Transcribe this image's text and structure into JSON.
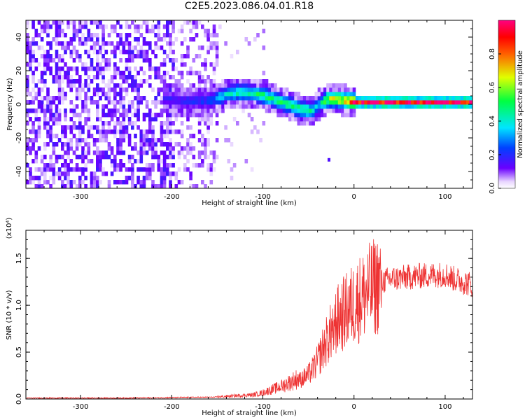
{
  "title": "C2E5.2023.086.04.01.R18",
  "colors": {
    "spectrogram_dark": "#6a00ff",
    "snr_line": "#ee3333",
    "axis": "#000000"
  },
  "chart_data": [
    {
      "type": "heatmap",
      "xlabel": "Height of straight line (km)",
      "ylabel": "Frequency (Hz)",
      "xlim": [
        -360,
        130
      ],
      "ylim": [
        -50,
        50
      ],
      "xticks": [
        -300,
        -200,
        -100,
        0,
        100
      ],
      "yticks": [
        -40,
        -20,
        0,
        20,
        40
      ],
      "grid": false,
      "colorbar": {
        "label": "Normalized spectral amplitude",
        "range": [
          0.0,
          1.0
        ],
        "ticks": [
          "0.0",
          "0.2",
          "0.4",
          "0.6",
          "0.8"
        ],
        "colormap": "rainbow"
      },
      "ridge": {
        "x": [
          -205,
          -190,
          -175,
          -160,
          -150,
          -140,
          -130,
          -120,
          -110,
          -100,
          -90,
          -80,
          -70,
          -60,
          -50,
          -45,
          -40,
          -30,
          -20,
          -10,
          0,
          20,
          40,
          60,
          80,
          100,
          120,
          130
        ],
        "y": [
          2,
          1,
          1,
          1,
          3,
          5,
          6,
          6,
          5,
          4,
          2,
          0,
          -2,
          -4,
          -5,
          -4,
          -1,
          2,
          2,
          1,
          0,
          0,
          0,
          0,
          0,
          0,
          0,
          0
        ],
        "amplitude": [
          0.2,
          0.2,
          0.25,
          0.25,
          0.4,
          0.45,
          0.5,
          0.5,
          0.5,
          0.55,
          0.55,
          0.55,
          0.55,
          0.55,
          0.5,
          0.45,
          0.4,
          0.7,
          0.75,
          0.8,
          1.0,
          1.0,
          1.0,
          1.0,
          1.0,
          1.0,
          1.0,
          1.0
        ]
      }
    },
    {
      "type": "line",
      "xlabel": "Height of straight line (km)",
      "ylabel": "SNR (10 * v/v)",
      "y_multiplier": "(x10⁴)",
      "xlim": [
        -360,
        130
      ],
      "ylim": [
        0,
        1.8
      ],
      "xticks": [
        -300,
        -200,
        -100,
        0,
        100
      ],
      "yticks": [
        "0.0",
        "0.5",
        "1.0",
        "1.5"
      ],
      "series": [
        {
          "x": [
            -360,
            -300,
            -250,
            -200,
            -150,
            -130,
            -110,
            -100,
            -90,
            -80,
            -70,
            -60,
            -50,
            -45,
            -40,
            -35,
            -30,
            -25,
            -20,
            -15,
            -10,
            -5,
            0,
            5,
            10,
            20,
            30,
            40,
            60,
            80,
            100,
            110,
            120,
            130
          ],
          "y": [
            0.01,
            0.01,
            0.01,
            0.015,
            0.02,
            0.03,
            0.04,
            0.06,
            0.09,
            0.12,
            0.16,
            0.2,
            0.26,
            0.32,
            0.4,
            0.52,
            0.62,
            0.72,
            0.82,
            0.88,
            0.92,
            0.97,
            1.02,
            1.06,
            1.1,
            1.18,
            1.25,
            1.28,
            1.3,
            1.32,
            1.33,
            1.28,
            1.25,
            1.22
          ]
        }
      ]
    }
  ]
}
